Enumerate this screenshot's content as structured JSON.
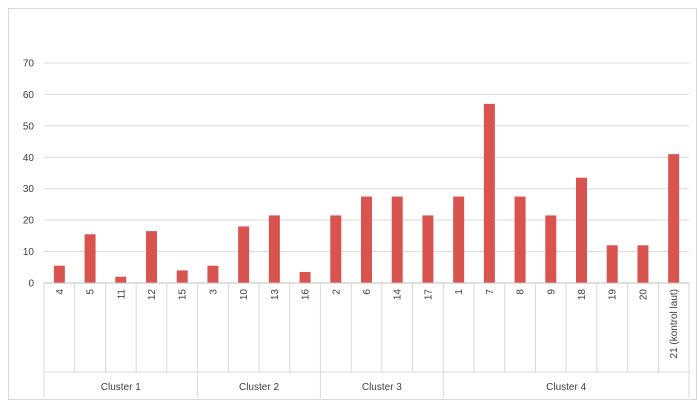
{
  "chart_data": {
    "type": "bar",
    "title": "",
    "xlabel": "",
    "ylabel": "",
    "ylim": [
      0,
      70
    ],
    "yticks": [
      0,
      10,
      20,
      30,
      40,
      50,
      60,
      70
    ],
    "grid": true,
    "legend": "none",
    "bar_color": "#d9534f",
    "categories": [
      "4",
      "5",
      "11",
      "12",
      "15",
      "3",
      "10",
      "13",
      "16",
      "2",
      "6",
      "14",
      "17",
      "1",
      "7",
      "8",
      "9",
      "18",
      "19",
      "20",
      "21 (kontrol laut)"
    ],
    "values": [
      5.5,
      15.5,
      2,
      16.5,
      4,
      5.5,
      18,
      21.5,
      3.5,
      21.5,
      27.5,
      27.5,
      21.5,
      27.5,
      57,
      27.5,
      21.5,
      33.5,
      12,
      12,
      41
    ],
    "groups": [
      {
        "label": "Cluster 1",
        "start": 0,
        "end": 4
      },
      {
        "label": "Cluster 2",
        "start": 5,
        "end": 8
      },
      {
        "label": "Cluster 3",
        "start": 9,
        "end": 12
      },
      {
        "label": "Cluster 4",
        "start": 13,
        "end": 20
      }
    ]
  }
}
